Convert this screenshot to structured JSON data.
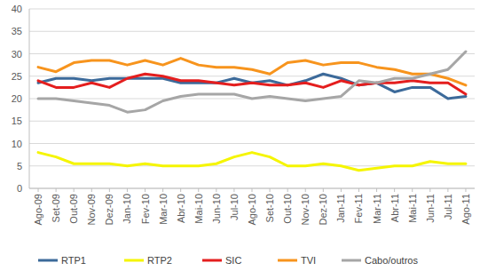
{
  "chart_data": {
    "type": "line",
    "categories": [
      "Ago-09",
      "Set-09",
      "Out-09",
      "Nov-09",
      "Dez-09",
      "Jan-10",
      "Fev-10",
      "Mar-10",
      "Abr-10",
      "Mai-10",
      "Jun-10",
      "Jul-10",
      "Ago-10",
      "Set-10",
      "Out-10",
      "Nov-10",
      "Dez-10",
      "Jan-11",
      "Fev-11",
      "Mar-11",
      "Abr-11",
      "Mai-11",
      "Jun-11",
      "Jul-11",
      "Ago-11"
    ],
    "series": [
      {
        "name": "RTP1",
        "color": "#3c6a9a",
        "values": [
          23.5,
          24.5,
          24.5,
          24,
          24.5,
          24.5,
          24.5,
          24.5,
          23.5,
          23.5,
          23.5,
          24.5,
          23.5,
          24,
          23,
          24,
          25.5,
          24.5,
          23,
          23.5,
          21.5,
          22.5,
          22.5,
          20,
          20.5
        ]
      },
      {
        "name": "RTP2",
        "color": "#f5f500",
        "values": [
          8,
          7,
          5.5,
          5.5,
          5.5,
          5,
          5.5,
          5,
          5,
          5,
          5.5,
          7,
          8,
          7,
          5,
          5,
          5.5,
          5,
          4,
          4.5,
          5,
          5,
          6,
          5.5,
          5.5
        ]
      },
      {
        "name": "SIC",
        "color": "#e41e1e",
        "values": [
          24,
          22.5,
          22.5,
          23.5,
          22.5,
          24.5,
          25.5,
          25,
          24,
          24,
          23.5,
          23,
          23.5,
          23,
          23,
          23.5,
          22.5,
          24,
          23,
          23.5,
          23.5,
          24,
          23.5,
          23.5,
          21
        ]
      },
      {
        "name": "TVI",
        "color": "#f7941d",
        "values": [
          27,
          26,
          28,
          28.5,
          28.5,
          27.5,
          28.5,
          27.5,
          29,
          27.5,
          27,
          27,
          26.5,
          25.5,
          28,
          28.5,
          27.5,
          28,
          28,
          27,
          26.5,
          25.5,
          25.5,
          24.5,
          23
        ]
      },
      {
        "name": "Cabo/outros",
        "color": "#a6a6a6",
        "values": [
          20,
          20,
          19.5,
          19,
          18.5,
          17,
          17.5,
          19.5,
          20.5,
          21,
          21,
          21,
          20,
          20.5,
          20,
          19.5,
          20,
          20.5,
          24,
          23.5,
          24.5,
          24.5,
          25.5,
          26.5,
          30.5
        ]
      }
    ],
    "ylim": [
      0,
      40
    ],
    "yticks": [
      0,
      5,
      10,
      15,
      20,
      25,
      30,
      35,
      40
    ],
    "grid": true,
    "legend": "bottom"
  }
}
